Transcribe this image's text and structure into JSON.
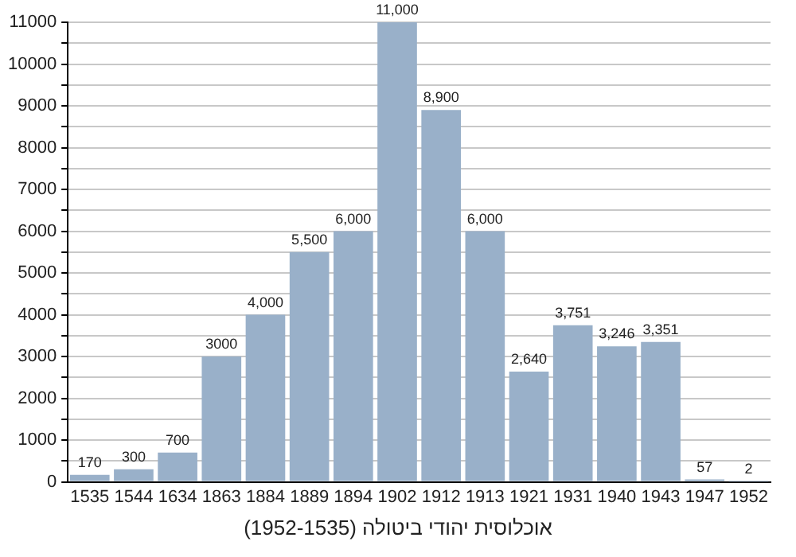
{
  "chart_data": {
    "type": "bar",
    "title": "אוכלוסית יהודי ביטולה (1952-1535)",
    "categories": [
      "1535",
      "1544",
      "1634",
      "1863",
      "1884",
      "1889",
      "1894",
      "1902",
      "1912",
      "1913",
      "1921",
      "1931",
      "1940",
      "1943",
      "1947",
      "1952"
    ],
    "values": [
      170,
      300,
      700,
      3000,
      4000,
      5500,
      6000,
      11000,
      8900,
      6000,
      2640,
      3751,
      3246,
      3351,
      57,
      2
    ],
    "value_labels": [
      "170",
      "300",
      "700",
      "3000",
      "4,000",
      "5,500",
      "6,000",
      "11,000",
      "8,900",
      "6,000",
      "2,640",
      "3,751",
      "3,246",
      "3,351",
      "57",
      "2"
    ],
    "color": "#99b0c9",
    "ylim": [
      0,
      11000
    ],
    "yticks": [
      0,
      {
        "value": 500,
        "label": null
      },
      1000,
      {
        "value": 1500,
        "label": null
      },
      2000,
      {
        "value": 2500,
        "label": null
      },
      3000,
      {
        "value": 3500,
        "label": null
      },
      4000,
      {
        "value": 4500,
        "label": null
      },
      5000,
      {
        "value": 5500,
        "label": null
      },
      6000,
      {
        "value": 6500,
        "label": null
      },
      7000,
      {
        "value": 7500,
        "label": null
      },
      8000,
      {
        "value": 8500,
        "label": null
      },
      9000,
      {
        "value": 9500,
        "label": null
      },
      10000,
      {
        "value": 10500,
        "label": null
      },
      11000
    ],
    "grid": "y"
  }
}
